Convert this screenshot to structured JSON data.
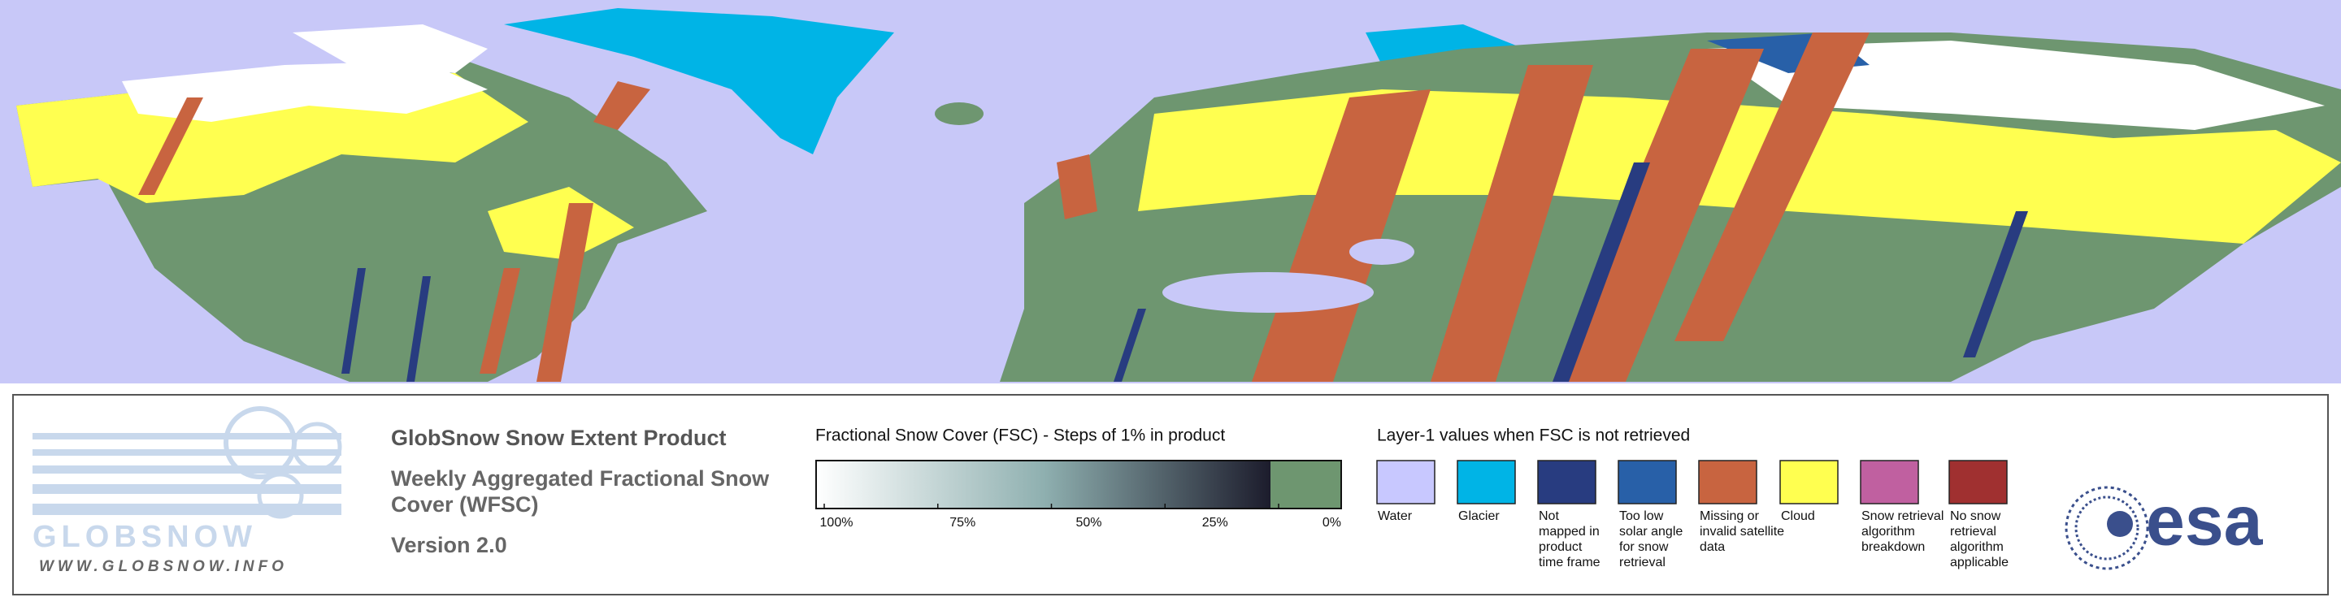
{
  "logo": {
    "name": "GLOBSNOW",
    "url": "WWW.GLOBSNOW.INFO",
    "agency": "esa"
  },
  "header": {
    "title": "GlobSnow Snow Extent Product",
    "subtitle_lines": [
      "Weekly Aggregated Fractional Snow",
      "Cover (WFSC)"
    ],
    "version": "Version 2.0"
  },
  "fsc_legend": {
    "title": "Fractional Snow Cover (FSC) - Steps of 1% in product",
    "labels": [
      "100%",
      "75%",
      "50%",
      "25%",
      "0%"
    ],
    "gradient_colors": [
      "#ffffff",
      "#8fb0b0",
      "#1c1c2c"
    ],
    "no_snow_color": "#6e9670"
  },
  "layer_legend": {
    "title": "Layer-1 values when FSC is not retrieved",
    "items": [
      {
        "color": "#c8c8ff",
        "lines": [
          "Water"
        ]
      },
      {
        "color": "#00b4e6",
        "lines": [
          "Glacier"
        ]
      },
      {
        "color": "#283c80",
        "lines": [
          "Not",
          "mapped in",
          "product",
          "time frame"
        ]
      },
      {
        "color": "#2860a8",
        "lines": [
          "Too low",
          "solar angle",
          "for snow",
          "retrieval"
        ]
      },
      {
        "color": "#c86440",
        "lines": [
          "Missing or",
          "invalid satellite",
          "data"
        ]
      },
      {
        "color": "#ffff50",
        "lines": [
          "Cloud"
        ]
      },
      {
        "color": "#c060a0",
        "lines": [
          "Snow retrieval",
          "algorithm",
          "breakdown"
        ]
      },
      {
        "color": "#a03030",
        "lines": [
          "No snow",
          "retrieval",
          "algorithm",
          "applicable"
        ]
      }
    ]
  }
}
